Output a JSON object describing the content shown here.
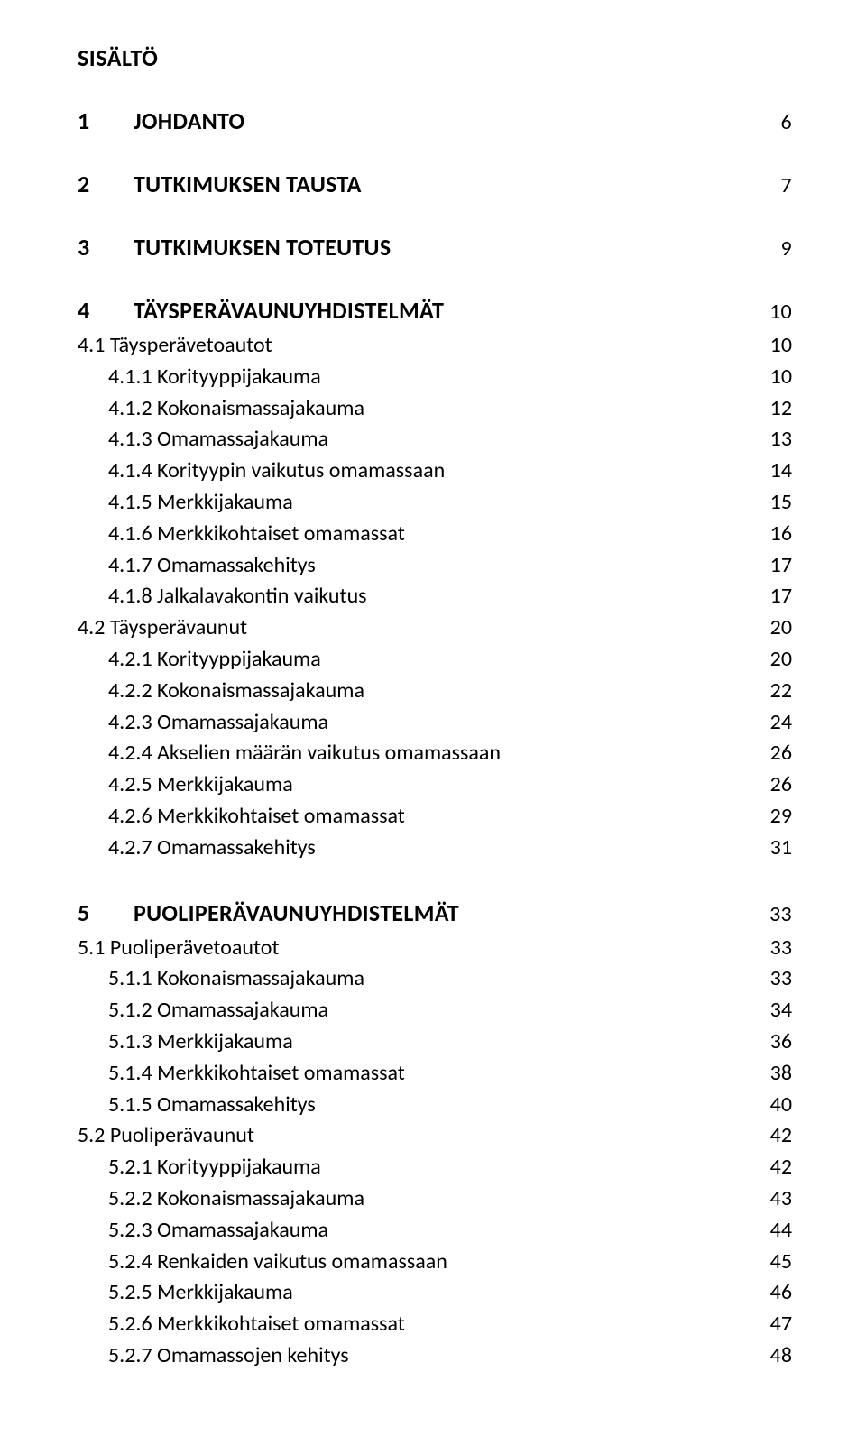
{
  "title": "SISÄLTÖ",
  "sections": [
    {
      "num": "1",
      "name": "JOHDANTO",
      "page": "6",
      "subs": []
    },
    {
      "num": "2",
      "name": "TUTKIMUKSEN TAUSTA",
      "page": "7",
      "subs": []
    },
    {
      "num": "3",
      "name": "TUTKIMUKSEN TOTEUTUS",
      "page": "9",
      "subs": []
    },
    {
      "num": "4",
      "name": "TÄYSPERÄVAUNUYHDISTELMÄT",
      "page": "10",
      "subs": [
        {
          "label": "4.1 Täysperävetoautot",
          "page": "10",
          "children": [
            {
              "label": "4.1.1 Korityyppijakauma",
              "page": "10"
            },
            {
              "label": "4.1.2 Kokonaismassajakauma",
              "page": "12"
            },
            {
              "label": "4.1.3 Omamassajakauma",
              "page": "13"
            },
            {
              "label": "4.1.4 Korityypin vaikutus omamassaan",
              "page": "14"
            },
            {
              "label": "4.1.5 Merkkijakauma",
              "page": "15"
            },
            {
              "label": "4.1.6 Merkkikohtaiset omamassat",
              "page": "16"
            },
            {
              "label": "4.1.7 Omamassakehitys",
              "page": "17"
            },
            {
              "label": "4.1.8 Jalkalavakontin vaikutus",
              "page": "17"
            }
          ]
        },
        {
          "label": "4.2 Täysperävaunut",
          "page": "20",
          "children": [
            {
              "label": "4.2.1 Korityyppijakauma",
              "page": "20"
            },
            {
              "label": "4.2.2 Kokonaismassajakauma",
              "page": "22"
            },
            {
              "label": "4.2.3 Omamassajakauma",
              "page": "24"
            },
            {
              "label": "4.2.4 Akselien määrän vaikutus omamassaan",
              "page": "26"
            },
            {
              "label": "4.2.5 Merkkijakauma",
              "page": "26"
            },
            {
              "label": "4.2.6 Merkkikohtaiset omamassat",
              "page": "29"
            },
            {
              "label": "4.2.7 Omamassakehitys",
              "page": "31"
            }
          ]
        }
      ]
    },
    {
      "num": "5",
      "name": "PUOLIPERÄVAUNUYHDISTELMÄT",
      "page": "33",
      "subs": [
        {
          "label": "5.1 Puoliperävetoautot",
          "page": "33",
          "children": [
            {
              "label": "5.1.1 Kokonaismassajakauma",
              "page": "33"
            },
            {
              "label": "5.1.2 Omamassajakauma",
              "page": "34"
            },
            {
              "label": "5.1.3 Merkkijakauma",
              "page": "36"
            },
            {
              "label": "5.1.4 Merkkikohtaiset omamassat",
              "page": "38"
            },
            {
              "label": "5.1.5 Omamassakehitys",
              "page": "40"
            }
          ]
        },
        {
          "label": "5.2 Puoliperävaunut",
          "page": "42",
          "children": [
            {
              "label": "5.2.1 Korityyppijakauma",
              "page": "42"
            },
            {
              "label": "5.2.2 Kokonaismassajakauma",
              "page": "43"
            },
            {
              "label": "5.2.3 Omamassajakauma",
              "page": "44"
            },
            {
              "label": "5.2.4 Renkaiden vaikutus omamassaan",
              "page": "45"
            },
            {
              "label": "5.2.5 Merkkijakauma",
              "page": "46"
            },
            {
              "label": "5.2.6 Merkkikohtaiset omamassat",
              "page": "47"
            },
            {
              "label": "5.2.7 Omamassojen kehitys",
              "page": "48"
            }
          ]
        }
      ]
    }
  ]
}
